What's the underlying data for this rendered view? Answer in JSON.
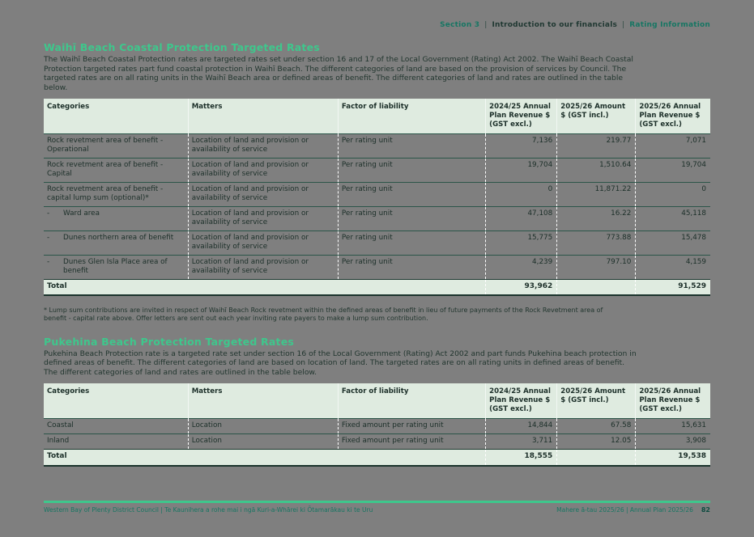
{
  "colors": {
    "accent_green": "#3EC78C",
    "teal_text": "#177663",
    "table_header_bg": "#DFEBE0",
    "page_bg": "#7F7F7F",
    "rule": "#2B5549"
  },
  "breadcrumb": {
    "section": "Section 3",
    "divider": "|",
    "topic": "Introduction to our financials",
    "subtopic": "Rating Information"
  },
  "waihi": {
    "title": "Waihī Beach Coastal Protection Targeted Rates",
    "intro": "The Waihī Beach Coastal Protection rates are targeted rates set under section 16 and 17 of the Local Government (Rating) Act 2002. The Waihī Beach Coastal\nProtection targeted rates part fund coastal protection in Waihī Beach. The different categories of land are based on the provision of services by Council. The\ntargeted rates are on all rating units in the Waihī Beach area or defined areas of benefit. The different categories of land and rates are outlined in the table\nbelow.",
    "table": {
      "bullet_glyph": "-",
      "headers": [
        "Categories",
        "Matters",
        "Factor of liability",
        "2024/25 Annual Plan Revenue $ (GST excl.)",
        "2025/26 Amount $ (GST incl.)",
        "2025/26 Annual Plan Revenue $ (GST excl.)"
      ],
      "rows": [
        {
          "category": "Rock revetment area of benefit - Operational",
          "matters": "Location of land and provision or availability of service",
          "factor": "Per rating unit",
          "rev2425": "7,136",
          "amount2526": "219.77",
          "rev2526": "7,071"
        },
        {
          "category": "Rock revetment area of benefit - Capital",
          "matters": "Location of land and provision or availability of service",
          "factor": "Per rating unit",
          "rev2425": "19,704",
          "amount2526": "1,510.64",
          "rev2526": "19,704"
        },
        {
          "category": "Rock revetment area of benefit - capital lump sum (optional)*",
          "matters": "Location of land and provision or availability of service",
          "factor": "Per rating unit",
          "rev2425": "0",
          "amount2526": "11,871.22",
          "rev2526": "0"
        },
        {
          "category": "Ward area",
          "matters": "Location of land and provision or availability of service",
          "factor": "Per rating unit",
          "rev2425": "47,108",
          "amount2526": "16.22",
          "rev2526": "45,118"
        },
        {
          "category": "Dunes northern area of benefit",
          "matters": "Location of land and provision or availability of service",
          "factor": "Per rating unit",
          "rev2425": "15,775",
          "amount2526": "773.88",
          "rev2526": "15,478"
        },
        {
          "category": "Dunes Glen Isla Place area of benefit",
          "matters": "Location of land and provision or availability of service",
          "factor": "Per rating unit",
          "rev2425": "4,239",
          "amount2526": "797.10",
          "rev2526": "4,159"
        }
      ],
      "total": {
        "label": "Total",
        "rev2425": "93,962",
        "amount2526": "",
        "rev2526": "91,529"
      }
    },
    "footnote": "* Lump sum contributions are invited in respect of Waihī Beach Rock revetment within the defined areas of benefit in lieu of future payments of the Rock Revetment area of\nbenefit - capital rate above. Offer letters are sent out each year inviting rate payers to make a lump sum contribution."
  },
  "pukehina": {
    "title": "Pukehina Beach Protection Targeted Rates",
    "intro": "Pukehina Beach Protection rate is a targeted rate set under section 16 of the Local Government (Rating) Act 2002 and part funds Pukehina beach protection in\ndefined areas of benefit. The different categories of land are based on location of land. The targeted rates are on all rating units in defined areas of benefit.\nThe different categories of land and rates are outlined in the table below.",
    "table": {
      "headers": [
        "Categories",
        "Matters",
        "Factor of liability",
        "2024/25 Annual Plan Revenue $ (GST excl.)",
        "2025/26 Amount $ (GST incl.)",
        "2025/26 Annual Plan Revenue $ (GST excl.)"
      ],
      "rows": [
        {
          "category": "Coastal",
          "matters": "Location",
          "factor": "Fixed amount per rating unit",
          "rev2425": "14,844",
          "amount2526": "67.58",
          "rev2526": "15,631"
        },
        {
          "category": "Inland",
          "matters": "Location",
          "factor": "Fixed amount per rating unit",
          "rev2425": "3,711",
          "amount2526": "12.05",
          "rev2526": "3,908"
        }
      ],
      "total": {
        "label": "Total",
        "rev2425": "18,555",
        "amount2526": "",
        "rev2526": "19,538"
      }
    }
  },
  "footer": {
    "left": "Western Bay of Plenty District Council | Te Kaunihera a rohe mai i ngā Kuri-a-Whārei ki Ōtamarākau ki te Uru",
    "right": "Mahere ā-tau 2025/26 | Annual Plan 2025/26",
    "page_number": "82"
  }
}
